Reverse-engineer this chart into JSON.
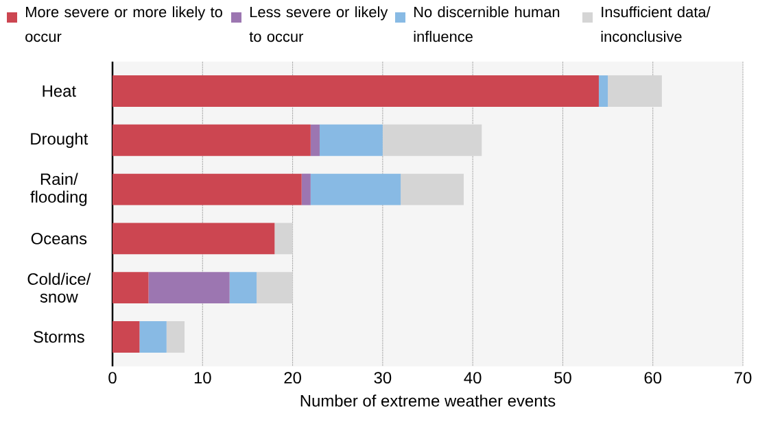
{
  "chart_data": {
    "type": "bar",
    "orientation": "horizontal",
    "stacked": true,
    "categories": [
      "Heat",
      "Drought",
      "Rain/ flooding",
      "Oceans",
      "Cold/ice/ snow",
      "Storms"
    ],
    "series": [
      {
        "name": "More severe or more likely to occur",
        "color": "#cc4651",
        "values": [
          54,
          22,
          21,
          18,
          4,
          3
        ]
      },
      {
        "name": "Less severe or likely to occur",
        "color": "#9c76b1",
        "values": [
          0,
          1,
          1,
          0,
          9,
          0
        ]
      },
      {
        "name": "No discernible human influence",
        "color": "#88bae4",
        "values": [
          1,
          7,
          10,
          0,
          3,
          3
        ]
      },
      {
        "name": "Insufficient data/ inconclusive",
        "color": "#d5d5d5",
        "values": [
          6,
          11,
          7,
          2,
          4,
          2
        ]
      }
    ],
    "xlabel": "Number of extreme weather events",
    "xlim": [
      0,
      70
    ],
    "xticks": [
      0,
      10,
      20,
      30,
      40,
      50,
      60,
      70
    ],
    "grid": "x",
    "legend": "top"
  }
}
